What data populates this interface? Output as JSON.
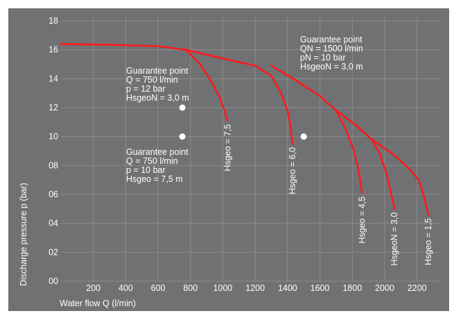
{
  "chart_data": {
    "type": "line",
    "xlabel": "Water flow Q (l/min)",
    "ylabel": "Discharge pressure p (bar)",
    "xlim": [
      0,
      2300
    ],
    "ylim": [
      0,
      18
    ],
    "x_ticks": [
      "200",
      "400",
      "600",
      "800",
      "1000",
      "1200",
      "1400",
      "1600",
      "1800",
      "2000",
      "2200"
    ],
    "y_ticks": [
      "00",
      "02",
      "04",
      "06",
      "08",
      "10",
      "12",
      "14",
      "16",
      "18"
    ],
    "grid": true,
    "series": [
      {
        "name": "Hsgeo = 7,5",
        "x": [
          0,
          300,
          600,
          770,
          860,
          930,
          980,
          1010,
          1030
        ],
        "y": [
          16.4,
          16.35,
          16.25,
          16.0,
          15.0,
          13.8,
          12.7,
          11.8,
          11.1
        ]
      },
      {
        "name": "Hsgeo = 6,0",
        "x": [
          770,
          1000,
          1200,
          1300,
          1360,
          1400,
          1420,
          1430
        ],
        "y": [
          16.0,
          15.4,
          14.9,
          14.2,
          13.0,
          11.8,
          10.6,
          9.5
        ]
      },
      {
        "name": "Hsgeo = 4,5",
        "x": [
          1300,
          1450,
          1600,
          1700,
          1760,
          1810,
          1840,
          1860
        ],
        "y": [
          14.9,
          13.9,
          12.8,
          11.8,
          10.5,
          9.0,
          7.6,
          6.1
        ]
      },
      {
        "name": "HsgeoN = 3,0",
        "x": [
          1700,
          1820,
          1920,
          1970,
          2010,
          2040,
          2060
        ],
        "y": [
          11.8,
          10.8,
          9.8,
          8.8,
          7.5,
          6.1,
          5.0
        ]
      },
      {
        "name": "Hsgeo = 1,5",
        "x": [
          1920,
          2050,
          2150,
          2210,
          2240,
          2270
        ],
        "y": [
          9.8,
          8.8,
          7.8,
          7.0,
          6.0,
          4.6
        ]
      }
    ],
    "guarantee_points": [
      {
        "x": 750,
        "y": 12,
        "label": [
          "Guarantee point",
          "Q = 750 l/min",
          "p = 12 bar",
          "HsgeoN = 3,0 m"
        ]
      },
      {
        "x": 750,
        "y": 10,
        "label": [
          "Guarantee point",
          "Q = 750 l/min",
          "p = 10 bar",
          "Hsgeo = 7,5 m"
        ]
      },
      {
        "x": 1500,
        "y": 10,
        "label": [
          "Guarantee point",
          "QN = 1500 l/min",
          "pN = 10 bar",
          "HsgeoN = 3,0 m"
        ]
      }
    ],
    "colors": {
      "background": "#707173",
      "grid": "#8b8c8e",
      "curve": "#ff1a1a",
      "text": "#ffffff",
      "point": "#ffffff"
    }
  }
}
